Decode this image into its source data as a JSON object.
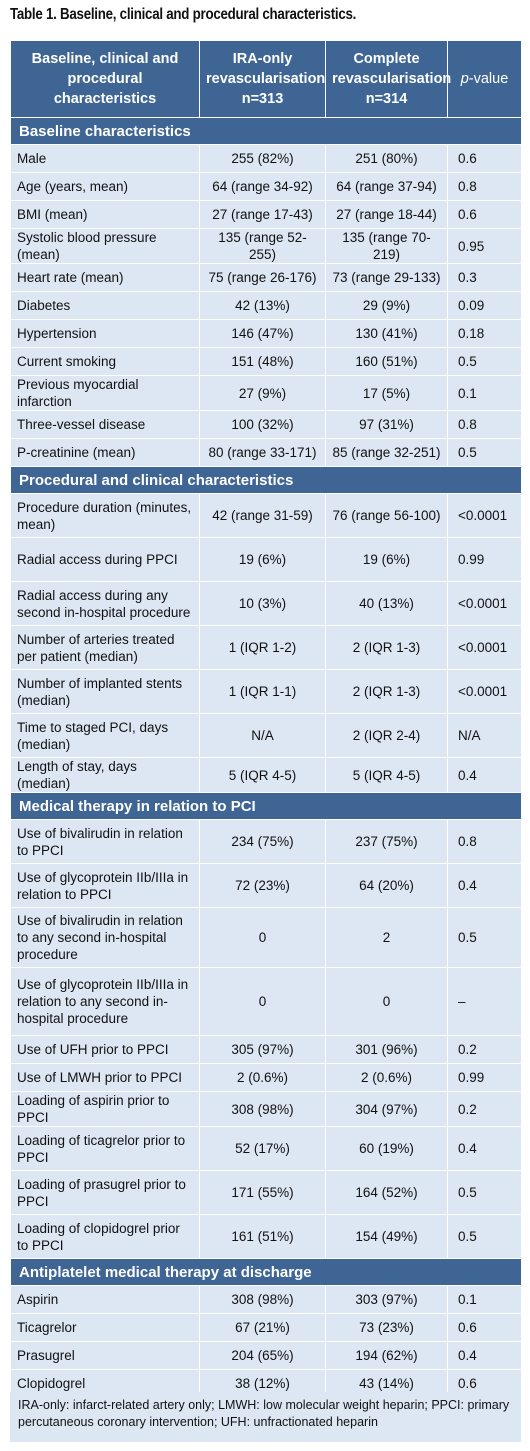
{
  "title": "Table 1. Baseline, clinical and procedural characteristics.",
  "header": {
    "col1": "Baseline, clinical and procedural characteristics",
    "col2_line1": "IRA-only revascularisation",
    "col2_line2": "n=313",
    "col3_line1": "Complete revascularisation",
    "col3_line2": "n=314",
    "col4_prefix": "p",
    "col4_suffix": "-value"
  },
  "sections": [
    {
      "title": "Baseline characteristics",
      "rows": [
        {
          "label": "Male",
          "ira": "255 (82%)",
          "complete": "251 (80%)",
          "p": "0.6"
        },
        {
          "label": "Age (years, mean)",
          "ira": "64 (range 34-92)",
          "complete": "64 (range 37-94)",
          "p": "0.8"
        },
        {
          "label": "BMI (mean)",
          "ira": "27 (range 17-43)",
          "complete": "27 (range 18-44)",
          "p": "0.6"
        },
        {
          "label": "Systolic blood pressure (mean)",
          "ira": "135 (range 52-255)",
          "complete": "135 (range 70-219)",
          "p": "0.95"
        },
        {
          "label": "Heart rate (mean)",
          "ira": "75 (range 26-176)",
          "complete": "73 (range 29-133)",
          "p": "0.3"
        },
        {
          "label": "Diabetes",
          "ira": "42 (13%)",
          "complete": "29 (9%)",
          "p": "0.09"
        },
        {
          "label": "Hypertension",
          "ira": "146 (47%)",
          "complete": "130 (41%)",
          "p": "0.18"
        },
        {
          "label": "Current smoking",
          "ira": "151 (48%)",
          "complete": "160 (51%)",
          "p": "0.5"
        },
        {
          "label": "Previous myocardial infarction",
          "ira": "27 (9%)",
          "complete": "17 (5%)",
          "p": "0.1"
        },
        {
          "label": "Three-vessel disease",
          "ira": "100 (32%)",
          "complete": "97 (31%)",
          "p": "0.8"
        },
        {
          "label": "P-creatinine (mean)",
          "ira": "80 (range 33-171)",
          "complete": "85 (range 32-251)",
          "p": "0.5"
        }
      ]
    },
    {
      "title": "Procedural and clinical characteristics",
      "rows": [
        {
          "label": "Procedure duration (minutes, mean)",
          "ira": "42 (range 31-59)",
          "complete": "76 (range 56-100)",
          "p": "<0.0001"
        },
        {
          "label": "Radial access during PPCI",
          "ira": "19 (6%)",
          "complete": "19 (6%)",
          "p": "0.99"
        },
        {
          "label": "Radial access during any second in-hospital procedure",
          "ira": "10 (3%)",
          "complete": "40 (13%)",
          "p": "<0.0001"
        },
        {
          "label": "Number of arteries treated per patient (median)",
          "ira": "1 (IQR 1-2)",
          "complete": "2 (IQR 1-3)",
          "p": "<0.0001"
        },
        {
          "label": "Number of implanted stents (median)",
          "ira": "1 (IQR 1-1)",
          "complete": "2 (IQR 1-3)",
          "p": "<0.0001"
        },
        {
          "label": "Time to staged PCI, days (median)",
          "ira": "N/A",
          "complete": "2 (IQR 2-4)",
          "p": "N/A"
        },
        {
          "label": "Length of stay, days (median)",
          "ira": "5 (IQR 4-5)",
          "complete": "5 (IQR 4-5)",
          "p": "0.4"
        }
      ]
    },
    {
      "title": "Medical therapy in relation to PCI",
      "rows": [
        {
          "label": "Use of bivalirudin in relation to PPCI",
          "ira": "234 (75%)",
          "complete": "237 (75%)",
          "p": "0.8"
        },
        {
          "label": "Use of glycoprotein IIb/IIIa in relation to PPCI",
          "ira": "72 (23%)",
          "complete": "64 (20%)",
          "p": "0.4"
        },
        {
          "label": "Use of bivalirudin in relation to any second in-hospital procedure",
          "ira": "0",
          "complete": "2",
          "p": "0.5"
        },
        {
          "label": "Use of glycoprotein IIb/IIIa in relation to any second in-hospital procedure",
          "ira": "0",
          "complete": "0",
          "p": "–"
        },
        {
          "label": "Use of UFH prior to PPCI",
          "ira": "305 (97%)",
          "complete": "301 (96%)",
          "p": "0.2"
        },
        {
          "label": "Use of LMWH prior to PPCI",
          "ira": "2 (0.6%)",
          "complete": "2 (0.6%)",
          "p": "0.99"
        },
        {
          "label": "Loading of aspirin prior to PPCI",
          "ira": "308 (98%)",
          "complete": "304 (97%)",
          "p": "0.2"
        },
        {
          "label": "Loading of ticagrelor prior to PPCI",
          "ira": "52 (17%)",
          "complete": "60 (19%)",
          "p": "0.4"
        },
        {
          "label": "Loading of prasugrel prior to PPCI",
          "ira": "171 (55%)",
          "complete": "164 (52%)",
          "p": "0.5"
        },
        {
          "label": "Loading of clopidogrel prior to PPCI",
          "ira": "161 (51%)",
          "complete": "154 (49%)",
          "p": "0.5"
        }
      ]
    },
    {
      "title": "Antiplatelet medical therapy at discharge",
      "rows": [
        {
          "label": "Aspirin",
          "ira": "308 (98%)",
          "complete": "303 (97%)",
          "p": "0.1"
        },
        {
          "label": "Ticagrelor",
          "ira": "67 (21%)",
          "complete": "73 (23%)",
          "p": "0.6"
        },
        {
          "label": "Prasugrel",
          "ira": "204 (65%)",
          "complete": "194 (62%)",
          "p": "0.4"
        },
        {
          "label": "Clopidogrel",
          "ira": "38 (12%)",
          "complete": "43 (14%)",
          "p": "0.6"
        }
      ]
    }
  ],
  "footnote": "IRA-only: infarct-related artery only; LMWH: low molecular weight heparin; PPCI: primary percutaneous coronary intervention; UFH: unfractionated heparin",
  "colors": {
    "header_bg": "#3f6594",
    "row_bg": "#dde7f3"
  }
}
